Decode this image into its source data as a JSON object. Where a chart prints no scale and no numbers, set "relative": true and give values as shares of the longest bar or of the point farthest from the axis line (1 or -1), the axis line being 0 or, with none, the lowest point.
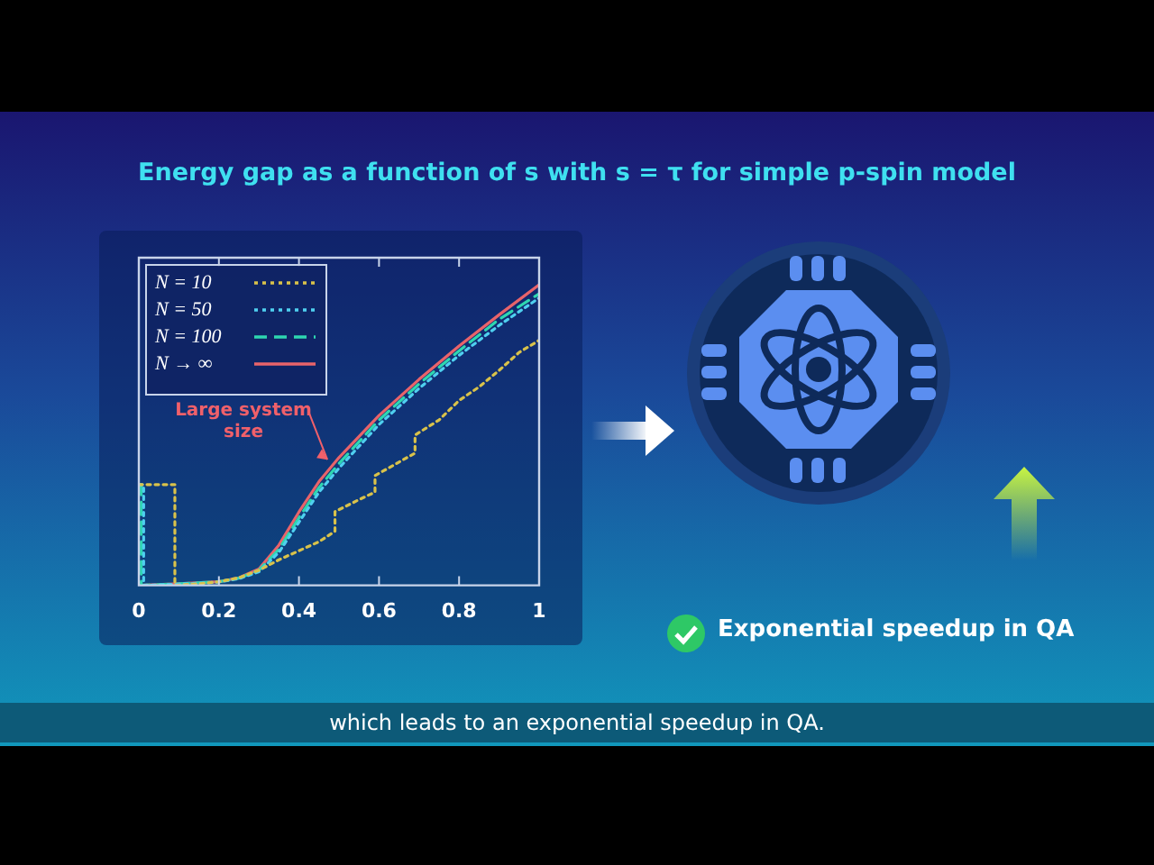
{
  "chart_data": {
    "type": "line",
    "title": "Energy gap as a function of s with s = τ for simple p-spin model",
    "relative": true,
    "xlim": [
      0,
      1
    ],
    "xticks": [
      0,
      0.2,
      0.4,
      0.6,
      0.8,
      1
    ],
    "tick_labels": "x",
    "grid": false,
    "legend": "top left",
    "marker": "none",
    "series": [
      {
        "name": "N = 10",
        "color": "#d9c24a",
        "line_style": "dotted",
        "x": [
          0,
          0.09,
          0.09,
          0.15,
          0.2,
          0.25,
          0.3,
          0.35,
          0.4,
          0.45,
          0.49,
          0.49,
          0.55,
          0.59,
          0.59,
          0.65,
          0.69,
          0.69,
          0.75,
          0.8,
          0.85,
          0.9,
          0.95,
          1
        ],
        "values": [
          0.335,
          0.335,
          0,
          0.005,
          0.012,
          0.025,
          0.05,
          0.085,
          0.115,
          0.145,
          0.18,
          0.245,
          0.285,
          0.31,
          0.365,
          0.41,
          0.44,
          0.5,
          0.55,
          0.615,
          0.66,
          0.715,
          0.775,
          0.815
        ]
      },
      {
        "name": "N = 50",
        "color": "#4fd0f0",
        "line_style": "dotted",
        "x": [
          0,
          0.012,
          0.012,
          0.1,
          0.2,
          0.25,
          0.3,
          0.35,
          0.4,
          0.45,
          0.5,
          0.6,
          0.7,
          0.8,
          0.9,
          1
        ],
        "values": [
          0.335,
          0.335,
          0,
          0.004,
          0.011,
          0.022,
          0.045,
          0.11,
          0.21,
          0.31,
          0.39,
          0.535,
          0.655,
          0.765,
          0.865,
          0.956
        ]
      },
      {
        "name": "N = 100",
        "color": "#2ed6b0",
        "line_style": "dashed",
        "x": [
          0,
          0.006,
          0.006,
          0.1,
          0.2,
          0.25,
          0.3,
          0.35,
          0.4,
          0.45,
          0.5,
          0.6,
          0.7,
          0.8,
          0.9,
          1
        ],
        "values": [
          0.335,
          0.335,
          0,
          0.005,
          0.012,
          0.024,
          0.05,
          0.12,
          0.225,
          0.325,
          0.405,
          0.55,
          0.67,
          0.78,
          0.885,
          0.97
        ]
      },
      {
        "name": "N → ∞",
        "color": "#e8636a",
        "line_style": "solid",
        "x": [
          0,
          0.1,
          0.2,
          0.25,
          0.3,
          0.35,
          0.4,
          0.45,
          0.5,
          0.6,
          0.7,
          0.8,
          0.9,
          1
        ],
        "values": [
          0,
          0.005,
          0.012,
          0.025,
          0.054,
          0.134,
          0.244,
          0.345,
          0.425,
          0.565,
          0.685,
          0.796,
          0.9,
          1
        ]
      }
    ],
    "annotations": [
      {
        "text": "Large system size",
        "x": 0.48,
        "y": 0.4
      },
      "Exponential speedup in QA",
      "which leads to an exponential speedup in QA."
    ]
  }
}
